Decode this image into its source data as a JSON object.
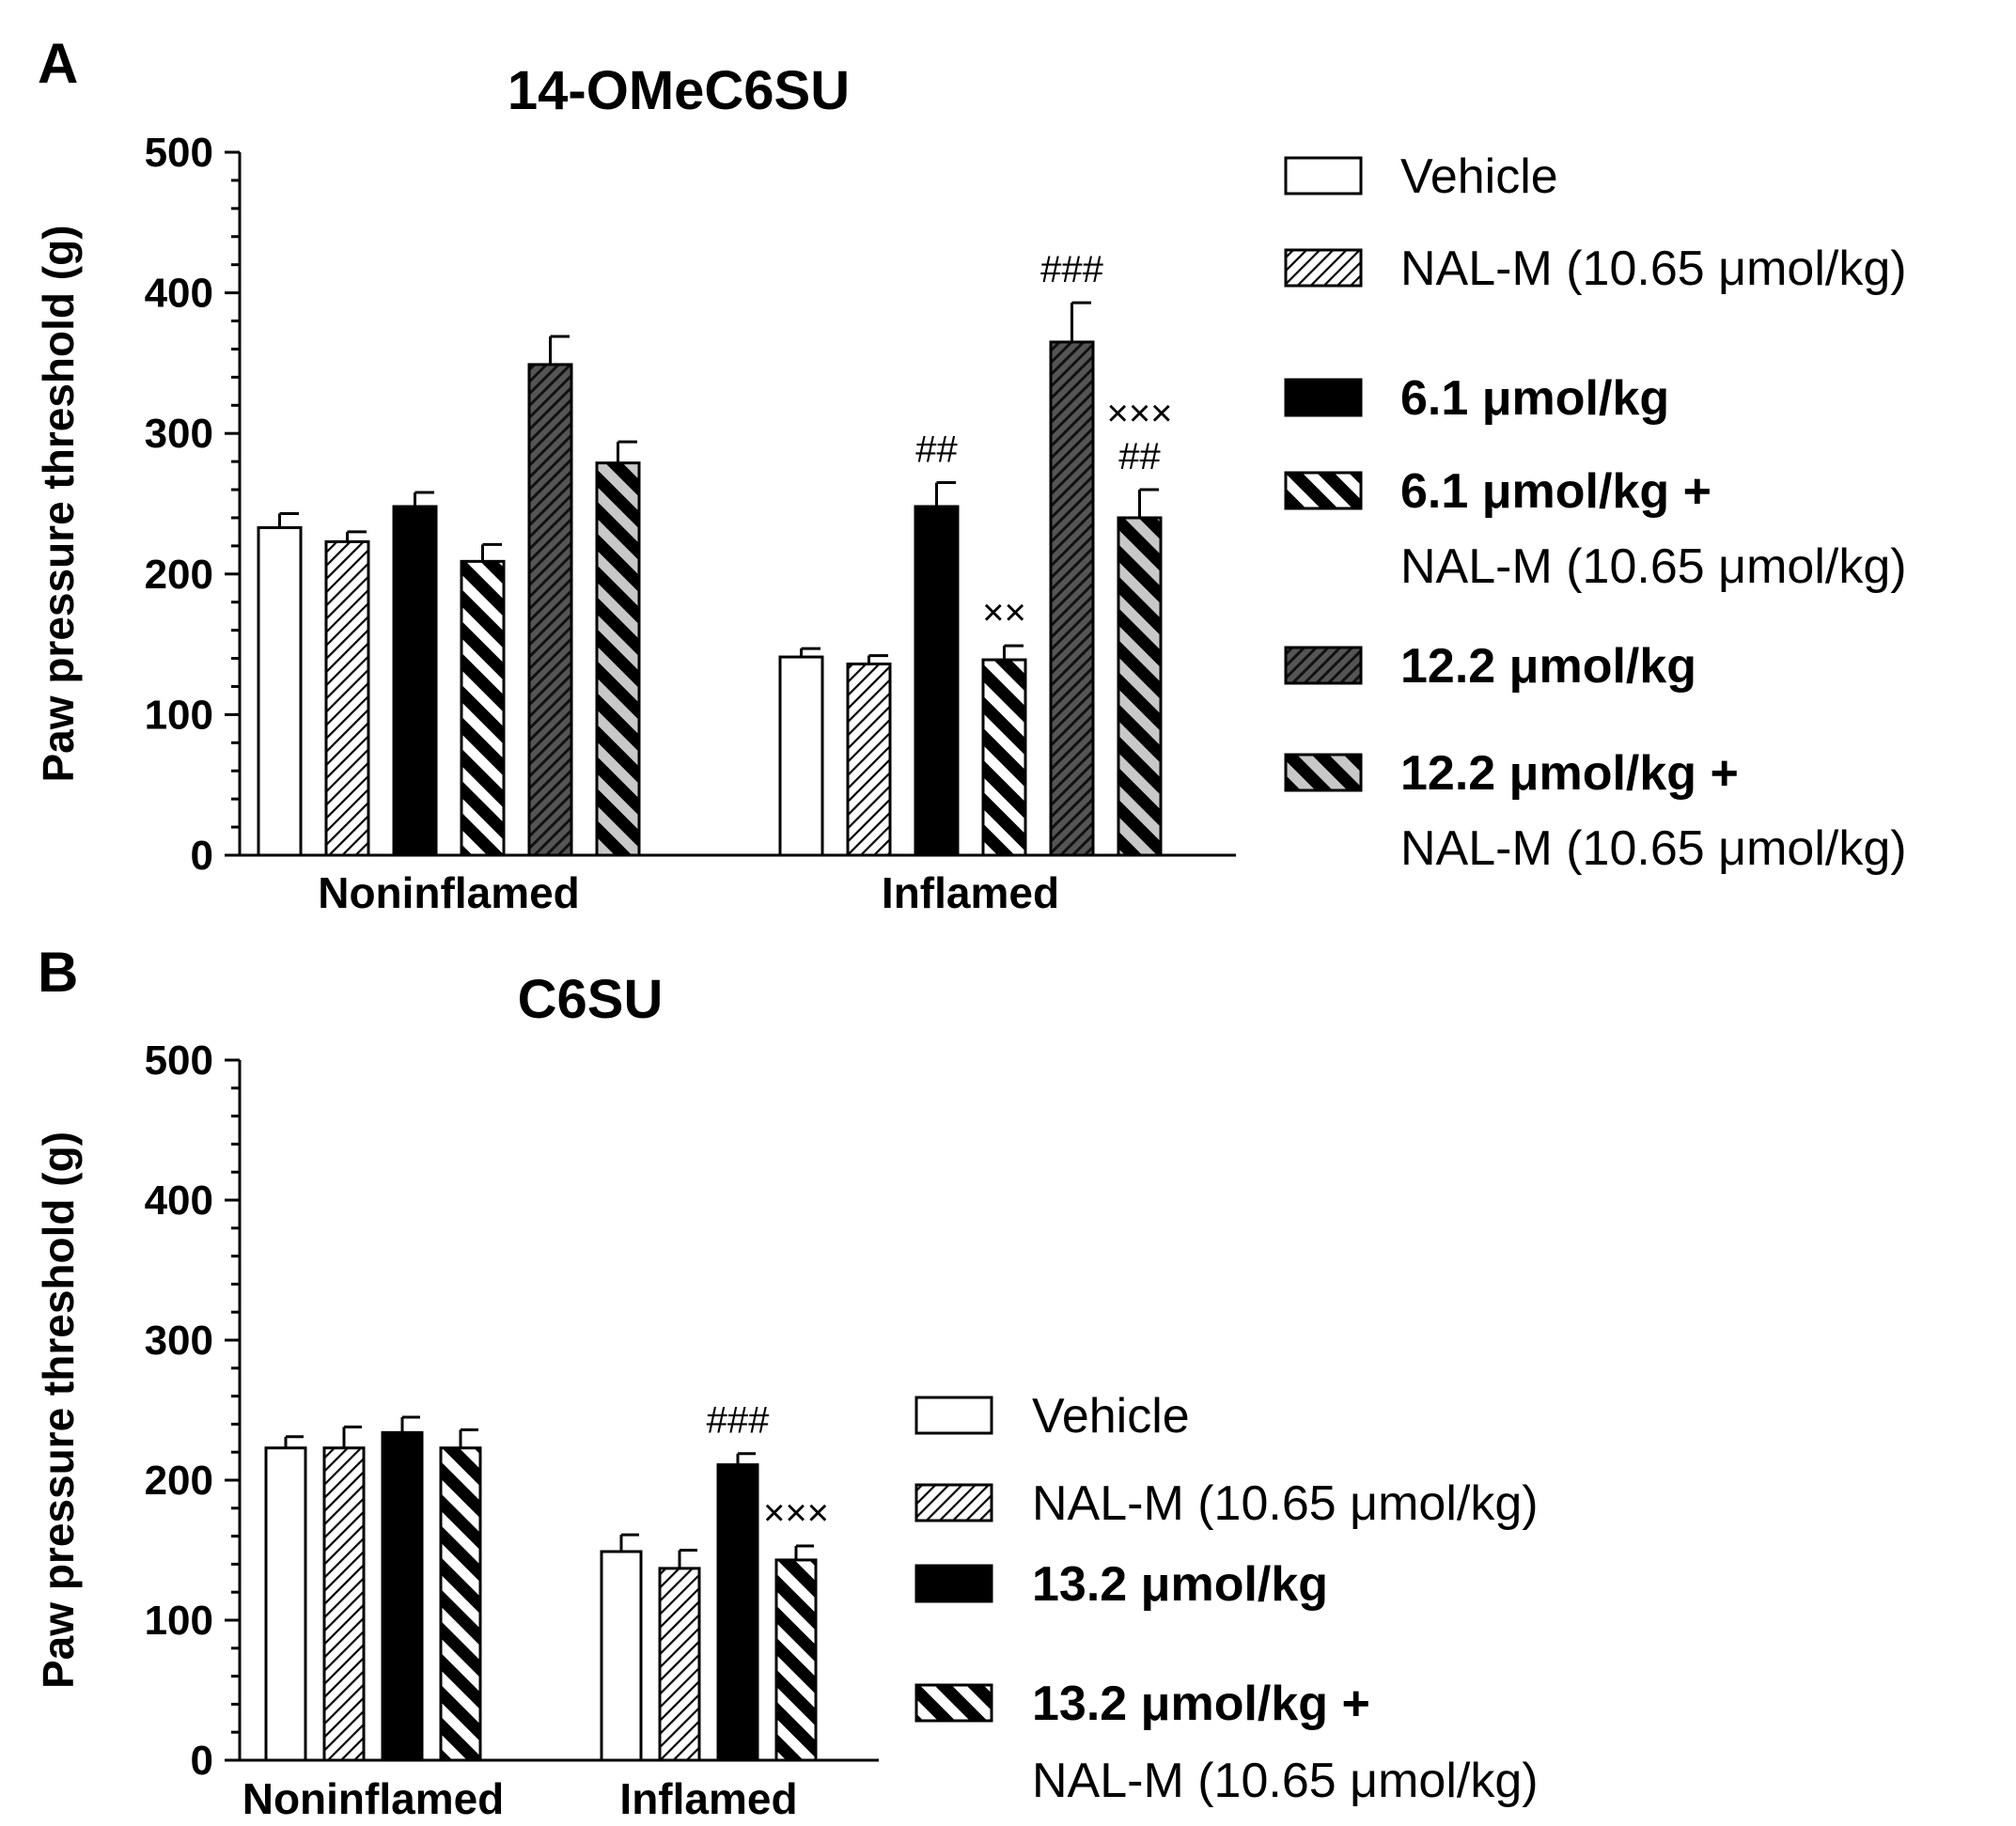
{
  "chart_data": [
    {
      "type": "bar",
      "panel_label": "A",
      "title": "14-OMeC6SU",
      "xlabel": "",
      "ylabel": "Paw pressure threshold (g)",
      "ylim": [
        0,
        500
      ],
      "yticks": [
        0,
        100,
        200,
        300,
        400,
        500
      ],
      "grid": false,
      "legend_position": "right",
      "categories": [
        "Noninflamed",
        "Inflamed"
      ],
      "series": [
        {
          "name": "Vehicle",
          "pattern": "white",
          "bold": false,
          "values": [
            233,
            141
          ],
          "errors": [
            10,
            6
          ],
          "annotations": [
            "",
            ""
          ]
        },
        {
          "name": "NAL-M (10.65 μmol/kg)",
          "pattern": "hatch-fine",
          "bold": false,
          "values": [
            223,
            136
          ],
          "errors": [
            7,
            6
          ],
          "annotations": [
            "",
            ""
          ]
        },
        {
          "name": "6.1 μmol/kg",
          "pattern": "black",
          "bold": true,
          "values": [
            248,
            248
          ],
          "errors": [
            10,
            17
          ],
          "annotations": [
            "",
            "##"
          ]
        },
        {
          "name": "6.1 μmol/kg +",
          "name_line2": "NAL-M (10.65 μmol/kg)",
          "pattern": "stripe-black-white",
          "bold": true,
          "values": [
            209,
            139
          ],
          "errors": [
            12,
            10
          ],
          "annotations": [
            "",
            "××"
          ]
        },
        {
          "name": "12.2 μmol/kg",
          "pattern": "hatch-dense",
          "bold": true,
          "values": [
            349,
            365
          ],
          "errors": [
            20,
            28
          ],
          "annotations": [
            "",
            "###"
          ]
        },
        {
          "name": "12.2 μmol/kg +",
          "name_line2": "NAL-M (10.65 μmol/kg)",
          "pattern": "stripe-black-gray",
          "bold": true,
          "values": [
            279,
            240
          ],
          "errors": [
            15,
            20
          ],
          "annotations": [
            "",
            "×××|##"
          ]
        }
      ]
    },
    {
      "type": "bar",
      "panel_label": "B",
      "title": "C6SU",
      "xlabel": "",
      "ylabel": "Paw pressure threshold (g)",
      "ylim": [
        0,
        500
      ],
      "yticks": [
        0,
        100,
        200,
        300,
        400,
        500
      ],
      "grid": false,
      "legend_position": "bottom-right",
      "categories": [
        "Noninflamed",
        "Inflamed"
      ],
      "series": [
        {
          "name": "Vehicle",
          "pattern": "white",
          "bold": false,
          "values": [
            223,
            149
          ],
          "errors": [
            8,
            12
          ],
          "annotations": [
            "",
            ""
          ]
        },
        {
          "name": "NAL-M (10.65 μmol/kg)",
          "pattern": "hatch-fine",
          "bold": false,
          "values": [
            223,
            137
          ],
          "errors": [
            15,
            13
          ],
          "annotations": [
            "",
            ""
          ]
        },
        {
          "name": "13.2 μmol/kg",
          "pattern": "black",
          "bold": true,
          "values": [
            234,
            211
          ],
          "errors": [
            11,
            8
          ],
          "annotations": [
            "",
            "###"
          ]
        },
        {
          "name": "13.2 μmol/kg +",
          "name_line2": "NAL-M (10.65 μmol/kg)",
          "pattern": "stripe-black-white",
          "bold": true,
          "values": [
            223,
            143
          ],
          "errors": [
            13,
            10
          ],
          "annotations": [
            "",
            "×××"
          ]
        }
      ]
    }
  ]
}
